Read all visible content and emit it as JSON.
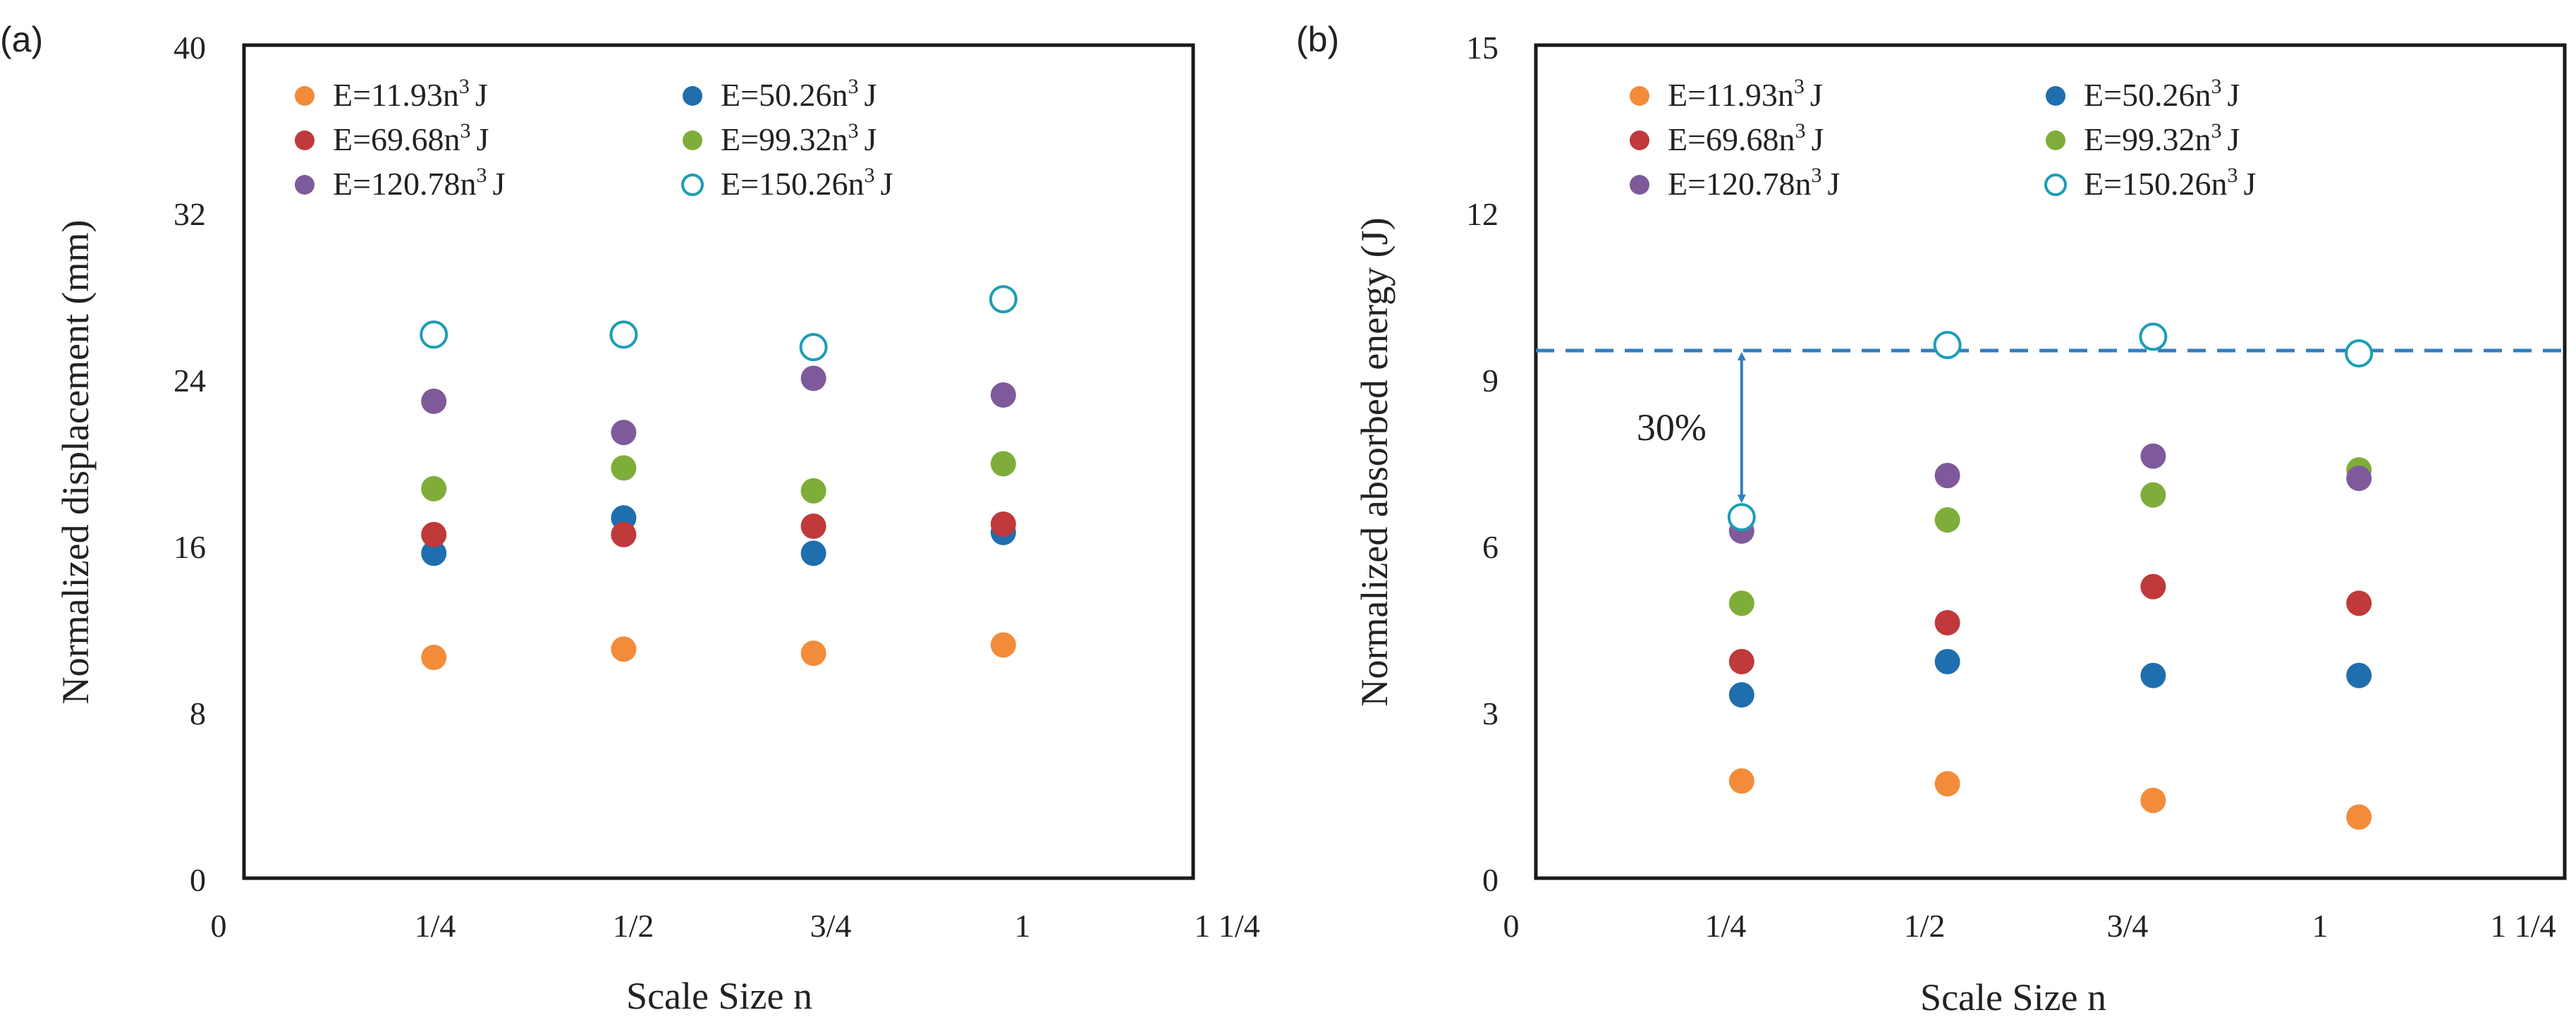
{
  "chart_data": [
    {
      "type": "scatter",
      "panel_label": "(a)",
      "title": "",
      "xlabel": "Scale Size n",
      "ylabel": "Normalized displacement (mm)",
      "xlim": [
        0,
        1.25
      ],
      "ylim": [
        0,
        40
      ],
      "xticks": [
        0,
        0.25,
        0.5,
        0.75,
        1,
        1.25
      ],
      "xtick_labels": [
        "0",
        "1/4",
        "1/2",
        "3/4",
        "1",
        "1 1/4"
      ],
      "yticks": [
        0,
        8,
        16,
        24,
        32,
        40
      ],
      "ytick_labels": [
        "0",
        "8",
        "16",
        "24",
        "32",
        "40"
      ],
      "grid": false,
      "legend_position": "top",
      "x": [
        0.25,
        0.5,
        0.75,
        1
      ],
      "series": [
        {
          "name": "E=11.93",
          "exponent": "3",
          "unit": "J",
          "color": "#F28C3A",
          "filled": true,
          "values": [
            10.6,
            11.0,
            10.8,
            11.2
          ]
        },
        {
          "name": "E=50.26",
          "exponent": "3",
          "unit": "J",
          "color": "#1F6EAD",
          "filled": true,
          "values": [
            15.6,
            17.3,
            15.6,
            16.6
          ]
        },
        {
          "name": "E=69.68",
          "exponent": "3",
          "unit": "J",
          "color": "#C0393B",
          "filled": true,
          "values": [
            16.5,
            16.5,
            16.9,
            17.0
          ]
        },
        {
          "name": "E=99.32",
          "exponent": "3",
          "unit": "J",
          "color": "#7FAD3A",
          "filled": true,
          "values": [
            18.7,
            19.7,
            18.6,
            19.9
          ]
        },
        {
          "name": "E=120.78",
          "exponent": "3",
          "unit": "J",
          "color": "#7E5A9B",
          "filled": true,
          "values": [
            22.9,
            21.4,
            24.0,
            23.2
          ]
        },
        {
          "name": "E=150.26",
          "exponent": "3",
          "unit": "J",
          "color": "#1D9DB5",
          "filled": false,
          "values": [
            26.1,
            26.1,
            25.5,
            27.8
          ]
        }
      ]
    },
    {
      "type": "scatter",
      "panel_label": "(b)",
      "title": "",
      "xlabel": "Scale Size n",
      "ylabel": "Normalized absorbed energy (J)",
      "xlim": [
        0,
        1.25
      ],
      "ylim": [
        0,
        15
      ],
      "xticks": [
        0,
        0.25,
        0.5,
        0.75,
        1,
        1.25
      ],
      "xtick_labels": [
        "0",
        "1/4",
        "1/2",
        "3/4",
        "1",
        "1 1/4"
      ],
      "yticks": [
        0,
        3,
        6,
        9,
        12,
        15
      ],
      "ytick_labels": [
        "0",
        "3",
        "6",
        "9",
        "12",
        "15"
      ],
      "grid": false,
      "legend_position": "top",
      "x": [
        0.25,
        0.5,
        0.75,
        1
      ],
      "series": [
        {
          "name": "E=11.93",
          "exponent": "3",
          "unit": "J",
          "color": "#F28C3A",
          "filled": true,
          "values": [
            1.75,
            1.7,
            1.4,
            1.1
          ]
        },
        {
          "name": "E=50.26",
          "exponent": "3",
          "unit": "J",
          "color": "#1F6EAD",
          "filled": true,
          "values": [
            3.3,
            3.9,
            3.65,
            3.65
          ]
        },
        {
          "name": "E=69.68",
          "exponent": "3",
          "unit": "J",
          "color": "#C0393B",
          "filled": true,
          "values": [
            3.9,
            4.6,
            5.25,
            4.95
          ]
        },
        {
          "name": "E=99.32",
          "exponent": "3",
          "unit": "J",
          "color": "#7FAD3A",
          "filled": true,
          "values": [
            4.95,
            6.45,
            6.9,
            7.35
          ]
        },
        {
          "name": "E=120.78",
          "exponent": "3",
          "unit": "J",
          "color": "#7E5A9B",
          "filled": true,
          "values": [
            6.25,
            7.25,
            7.6,
            7.2
          ]
        },
        {
          "name": "E=150.26",
          "exponent": "3",
          "unit": "J",
          "color": "#1D9DB5",
          "filled": false,
          "values": [
            6.5,
            9.6,
            9.75,
            9.45
          ]
        }
      ],
      "reference_line": {
        "y": 9.5,
        "style": "dashed",
        "color": "#2F7FC1"
      },
      "annotation": {
        "text": "30%",
        "arrow_x": 0.25,
        "arrow_from": 9.5,
        "arrow_to": 6.5,
        "color": "#2F7FC1"
      }
    }
  ]
}
